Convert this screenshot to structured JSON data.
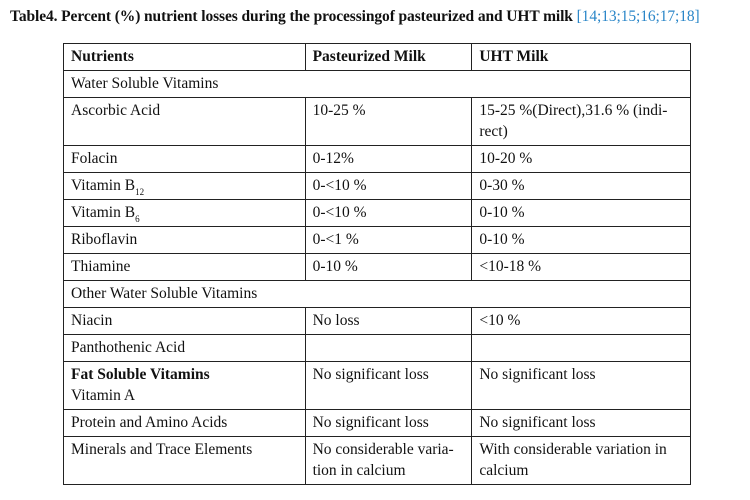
{
  "caption": {
    "title": "Table4. Percent (%) nutrient losses during the  processingof pasteurized and  UHT milk",
    "refs": "[14;13;15;16;17;18]"
  },
  "table": {
    "headers": [
      "Nutrients",
      "Pasteurized  Milk",
      "UHT Milk"
    ],
    "rows": {
      "water_soluble": "Water Soluble  Vitamins",
      "ascorbic": {
        "name": "Ascorbic Acid",
        "past": "10-25 %",
        "uht": "15-25 %(Direct),31.6 % (indi-rect)"
      },
      "folacin": {
        "name": "Folacin",
        "past": "0-12%",
        "uht": "10-20 %"
      },
      "b12": {
        "name": "Vitamin B",
        "sub": "12",
        "past": "0-<10 %",
        "uht": "0-30 %"
      },
      "b6": {
        "name": "Vitamin B",
        "sub": "6",
        "past": "0-<10 %",
        "uht": "0-10 %"
      },
      "riboflavin": {
        "name": "Riboflavin",
        "past": "0-<1 %",
        "uht": "0-10 %"
      },
      "thiamine": {
        "name": "Thiamine",
        "past": "0-10 %",
        "uht": "<10-18 %"
      },
      "other_water": "Other Water Soluble Vitamins",
      "niacin": {
        "name": "Niacin",
        "past": "No loss",
        "uht": "<10 %"
      },
      "panthothenic": {
        "name": "Panthothenic Acid",
        "past": "",
        "uht": ""
      },
      "fat_soluble": {
        "heading": "Fat Soluble Vitamins",
        "name": "Vitamin A",
        "past": "No significant  loss",
        "uht": "No significant loss"
      },
      "protein": {
        "name": "Protein and Amino Acids",
        "past": "No significant loss",
        "uht": "No significant loss"
      },
      "minerals": {
        "name": "Minerals  and Trace Elements",
        "past": "No considerable varia-tion in calcium",
        "uht": "With considerable variation in calcium"
      }
    }
  }
}
